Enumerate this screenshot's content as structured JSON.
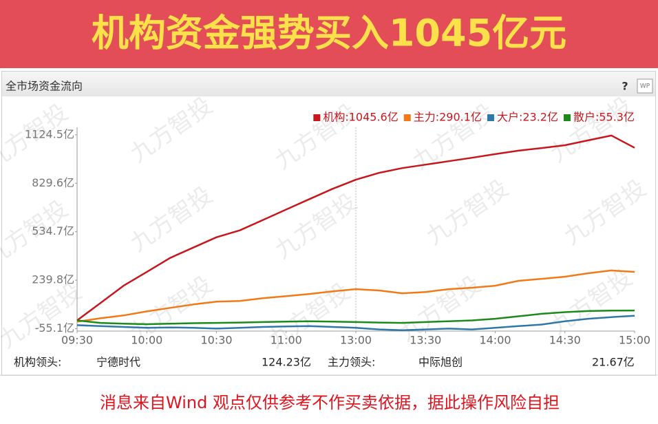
{
  "header": {
    "title": "机构资金强势买入1045亿元"
  },
  "panel": {
    "title": "全市场资金流向",
    "help": "?",
    "badge": "WP"
  },
  "watermark": "九方智投",
  "chart_data": {
    "type": "line",
    "categories": [
      "09:30",
      null,
      null,
      "10:00",
      null,
      null,
      "10:30",
      null,
      null,
      "11:00",
      null,
      null,
      "13:00",
      null,
      null,
      "13:30",
      null,
      null,
      "14:00",
      null,
      null,
      "14:30",
      null,
      null,
      "15:00"
    ],
    "series": [
      {
        "name": "机构:1045.6亿",
        "color": "#c8161d",
        "values": [
          -5,
          100,
          206,
          290,
          375,
          438,
          501,
          543,
          606,
          670,
          733,
          796,
          851,
          893,
          922,
          943,
          964,
          985,
          1007,
          1028,
          1044,
          1061,
          1091,
          1120,
          1045.6
        ]
      },
      {
        "name": "主力:290.1亿",
        "color": "#f07a17",
        "values": [
          -13,
          8,
          25,
          50,
          71,
          92,
          109,
          113,
          130,
          143,
          156,
          172,
          185,
          177,
          160,
          168,
          185,
          194,
          206,
          236,
          248,
          261,
          282,
          299,
          290.1
        ]
      },
      {
        "name": "大户:23.2亿",
        "color": "#2e78a8",
        "values": [
          -34,
          -40,
          -45,
          -50,
          -48,
          -50,
          -55,
          -50,
          -45,
          -42,
          -40,
          -45,
          -50,
          -60,
          -65,
          -60,
          -55,
          -60,
          -50,
          -40,
          -30,
          -10,
          5,
          15,
          23.2
        ]
      },
      {
        "name": "散户:55.3亿",
        "color": "#1a8a1a",
        "values": [
          -5,
          -20,
          -25,
          -28,
          -25,
          -22,
          -20,
          -18,
          -15,
          -12,
          -10,
          -12,
          -15,
          -18,
          -20,
          -15,
          -10,
          -5,
          5,
          20,
          35,
          45,
          52,
          55,
          55.3
        ]
      }
    ],
    "ylim": [
      -70,
      1170
    ],
    "yticks": [
      {
        "value": -55.1,
        "label": "-55.1亿"
      },
      {
        "value": 239.8,
        "label": "239.8亿"
      },
      {
        "value": 534.7,
        "label": "534.7亿"
      },
      {
        "value": 829.6,
        "label": "829.6亿"
      },
      {
        "value": 1124.5,
        "label": "1124.5亿"
      }
    ],
    "grid": false,
    "legend": "top-right"
  },
  "footer": {
    "items": [
      "机构领头:",
      "宁德时代",
      "124.23亿",
      "主力领头:",
      "中际旭创",
      "21.67亿"
    ]
  },
  "disclaimer": "消息来自Wind  观点仅供参考不作买卖依据，据此操作风险自担"
}
